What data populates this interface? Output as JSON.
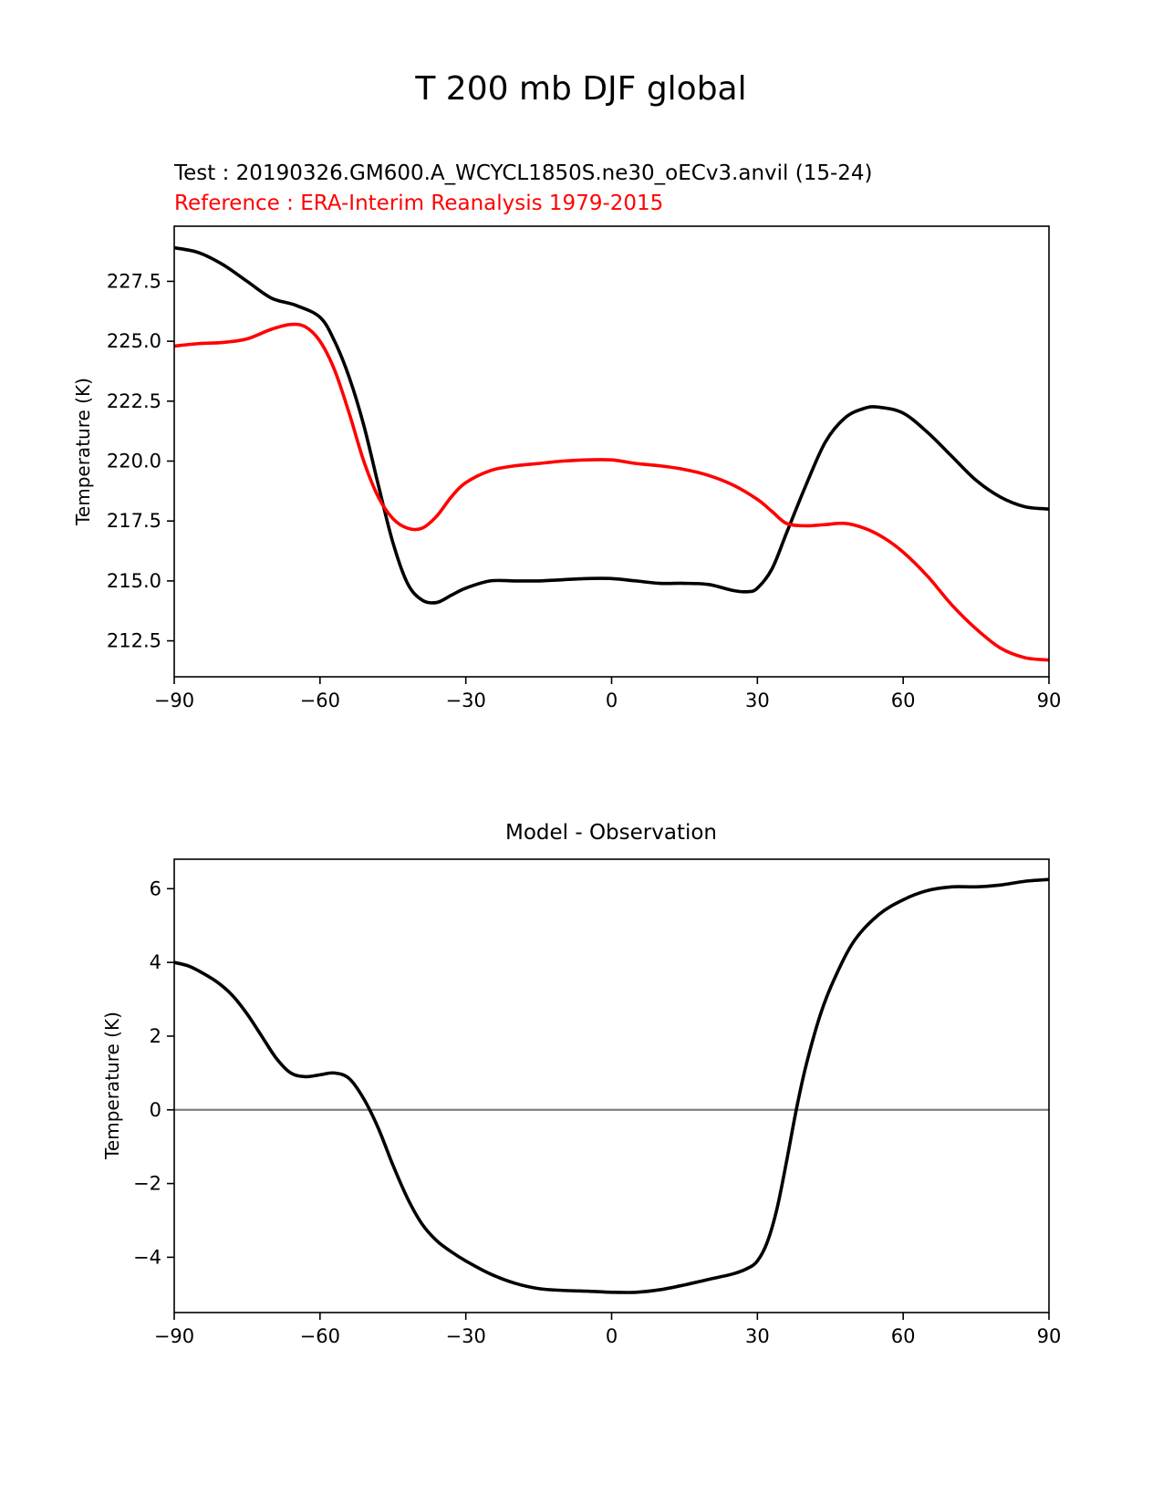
{
  "figure": {
    "title": "T 200 mb DJF global"
  },
  "colors": {
    "test": "#000000",
    "reference": "#ff0000",
    "zero_line": "#808080"
  },
  "chart_data": [
    {
      "type": "line",
      "panel": "top",
      "test_label": "Test : 20190326.GM600.A_WCYCL1850S.ne30_oECv3.anvil (15-24)",
      "reference_label": "Reference : ERA-Interim Reanalysis 1979-2015",
      "xlabel": "",
      "ylabel": "Temperature (K)",
      "xlim": [
        -90,
        90
      ],
      "ylim": [
        211,
        229.8
      ],
      "xticks": [
        -90,
        -60,
        -30,
        0,
        30,
        60,
        90
      ],
      "xtick_labels": [
        "−90",
        "−60",
        "−30",
        "0",
        "30",
        "60",
        "90"
      ],
      "yticks": [
        212.5,
        215.0,
        217.5,
        220.0,
        222.5,
        225.0,
        227.5
      ],
      "ytick_labels": [
        "212.5",
        "215.0",
        "217.5",
        "220.0",
        "222.5",
        "225.0",
        "227.5"
      ],
      "series": [
        {
          "name": "Test",
          "color": "#000000",
          "x": [
            -90,
            -85,
            -80,
            -75,
            -70,
            -65,
            -60,
            -57,
            -54,
            -51,
            -48,
            -45,
            -42,
            -39,
            -36,
            -33,
            -30,
            -25,
            -20,
            -15,
            -10,
            -5,
            0,
            5,
            10,
            15,
            20,
            25,
            28,
            30,
            33,
            36,
            40,
            44,
            48,
            52,
            55,
            60,
            65,
            70,
            75,
            80,
            85,
            90
          ],
          "values": [
            228.9,
            228.7,
            228.2,
            227.5,
            226.8,
            226.5,
            226.0,
            225.0,
            223.5,
            221.5,
            219.0,
            216.6,
            214.9,
            214.2,
            214.1,
            214.4,
            214.7,
            215.0,
            215.0,
            215.0,
            215.05,
            215.1,
            215.1,
            215.0,
            214.9,
            214.9,
            214.85,
            214.6,
            214.55,
            214.7,
            215.5,
            217.0,
            219.0,
            220.8,
            221.8,
            222.2,
            222.25,
            222.0,
            221.2,
            220.2,
            219.2,
            218.5,
            218.1,
            218.0
          ]
        },
        {
          "name": "Reference",
          "color": "#ff0000",
          "x": [
            -90,
            -85,
            -80,
            -75,
            -70,
            -66,
            -63,
            -60,
            -57,
            -54,
            -51,
            -48,
            -45,
            -42,
            -39,
            -36,
            -33,
            -30,
            -25,
            -20,
            -15,
            -10,
            -5,
            0,
            5,
            10,
            15,
            20,
            25,
            30,
            33,
            36,
            40,
            44,
            48,
            52,
            56,
            60,
            65,
            70,
            75,
            80,
            85,
            90
          ],
          "values": [
            224.8,
            224.9,
            224.95,
            225.1,
            225.5,
            225.7,
            225.6,
            225.0,
            223.8,
            222.0,
            220.0,
            218.5,
            217.6,
            217.2,
            217.2,
            217.7,
            218.5,
            219.1,
            219.6,
            219.8,
            219.9,
            220.0,
            220.05,
            220.05,
            219.9,
            219.8,
            219.65,
            219.4,
            219.0,
            218.4,
            217.9,
            217.4,
            217.3,
            217.35,
            217.4,
            217.2,
            216.8,
            216.2,
            215.2,
            214.0,
            213.0,
            212.2,
            211.8,
            211.7
          ]
        }
      ]
    },
    {
      "type": "line",
      "panel": "bottom",
      "title": "Model - Observation",
      "xlabel": "",
      "ylabel": "Temperature (K)",
      "xlim": [
        -90,
        90
      ],
      "ylim": [
        -5.5,
        6.8
      ],
      "xticks": [
        -90,
        -60,
        -30,
        0,
        30,
        60,
        90
      ],
      "xtick_labels": [
        "−90",
        "−60",
        "−30",
        "0",
        "30",
        "60",
        "90"
      ],
      "yticks": [
        -4,
        -2,
        0,
        2,
        4,
        6
      ],
      "ytick_labels": [
        "−4",
        "−2",
        "0",
        "2",
        "4",
        "6"
      ],
      "zero_line": 0,
      "series": [
        {
          "name": "Model - Observation",
          "color": "#000000",
          "x": [
            -90,
            -87,
            -84,
            -81,
            -78,
            -75,
            -72,
            -69,
            -66,
            -63,
            -60,
            -57,
            -54,
            -51,
            -48,
            -45,
            -42,
            -39,
            -36,
            -33,
            -30,
            -25,
            -20,
            -15,
            -10,
            -5,
            0,
            5,
            10,
            15,
            20,
            25,
            28,
            30,
            32,
            34,
            36,
            38,
            40,
            43,
            46,
            50,
            55,
            60,
            65,
            70,
            75,
            80,
            85,
            90
          ],
          "values": [
            4.0,
            3.9,
            3.7,
            3.45,
            3.1,
            2.6,
            2.0,
            1.4,
            1.0,
            0.9,
            0.95,
            1.0,
            0.85,
            0.3,
            -0.5,
            -1.5,
            -2.4,
            -3.1,
            -3.55,
            -3.85,
            -4.1,
            -4.45,
            -4.7,
            -4.85,
            -4.9,
            -4.92,
            -4.95,
            -4.95,
            -4.88,
            -4.75,
            -4.6,
            -4.45,
            -4.3,
            -4.1,
            -3.6,
            -2.7,
            -1.4,
            0.0,
            1.2,
            2.6,
            3.6,
            4.6,
            5.3,
            5.7,
            5.95,
            6.05,
            6.05,
            6.1,
            6.2,
            6.25
          ]
        }
      ]
    }
  ]
}
